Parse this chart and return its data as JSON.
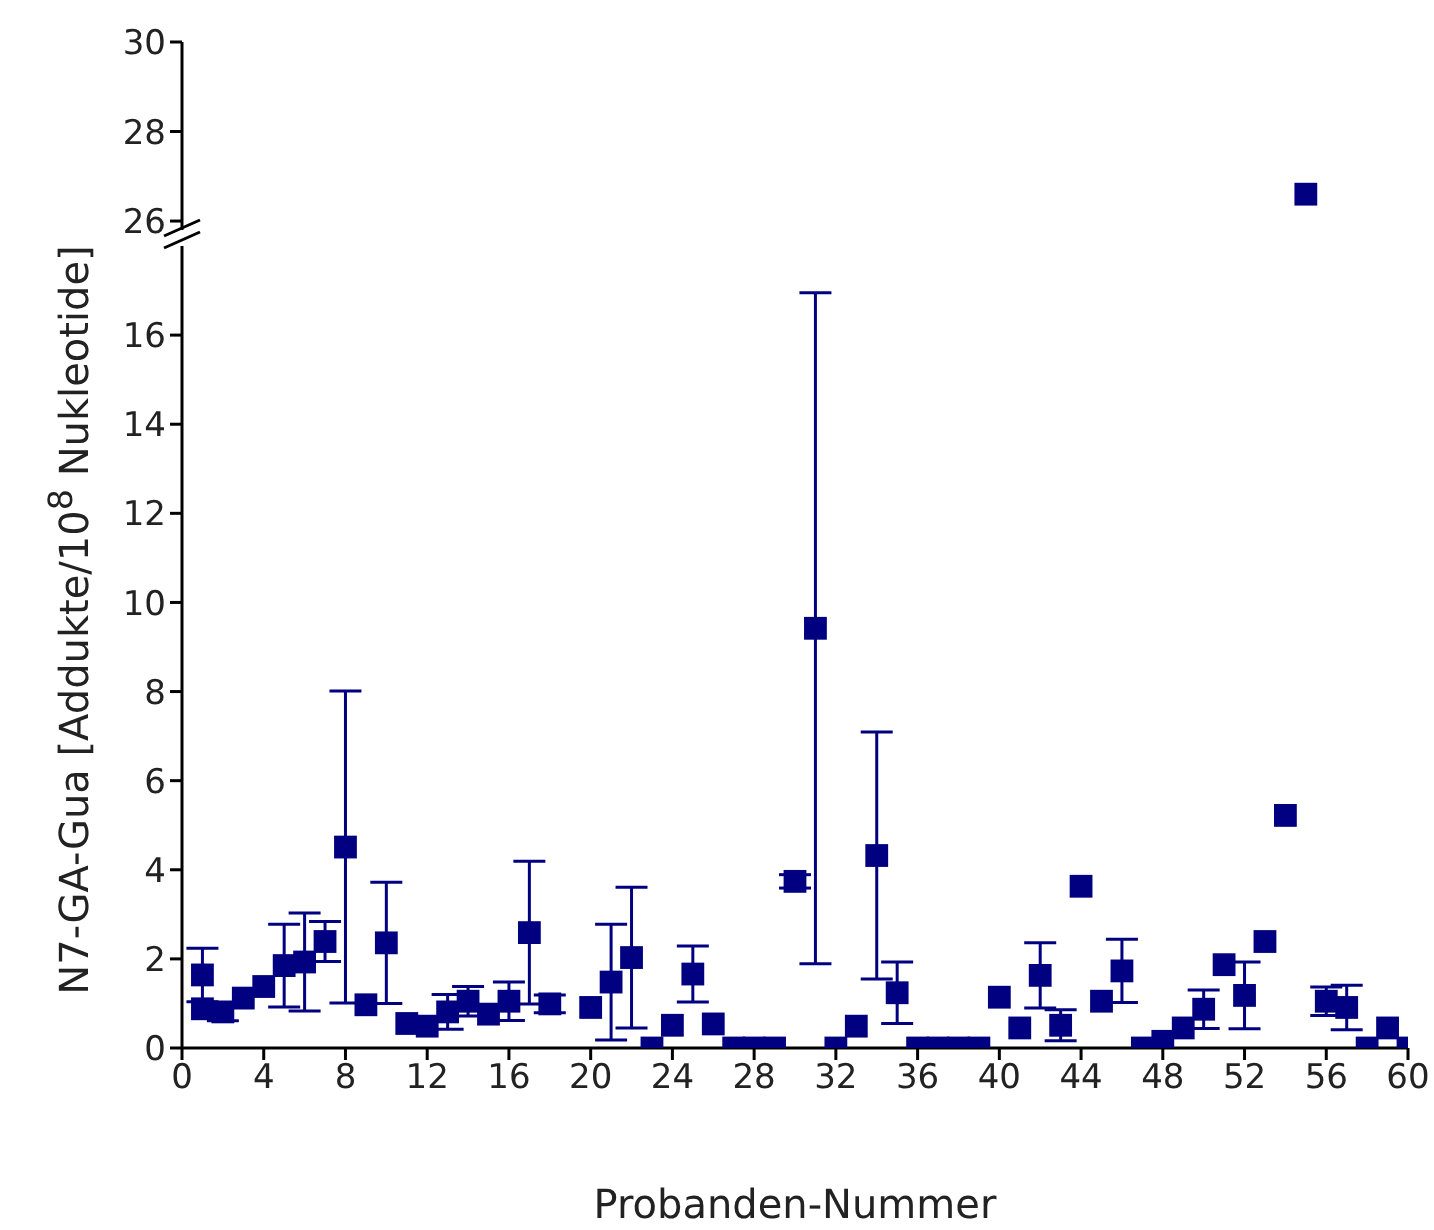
{
  "chart_data": [
    {
      "type": "scatter",
      "marker": "square",
      "tick_labels": "y",
      "xlim": [
        0,
        60
      ],
      "ylim": [
        25.8,
        30
      ],
      "yticks": [
        26,
        28,
        30
      ],
      "series": [
        {
          "color": "#000080",
          "x": [
            55
          ],
          "values": [
            26.6
          ]
        }
      ]
    },
    {
      "type": "scatter",
      "marker": "square",
      "xlabel": "Probanden-Nummer",
      "ylabel": "N7-GA-Gua [Addukte/10$^{8}$ Nukleotide]",
      "xlim": [
        0,
        60
      ],
      "xticks": [
        0,
        4,
        8,
        12,
        16,
        20,
        24,
        28,
        32,
        36,
        40,
        44,
        48,
        52,
        56,
        60
      ],
      "ylim": [
        0,
        18
      ],
      "yticks": [
        0,
        2,
        4,
        6,
        8,
        10,
        12,
        14,
        16
      ],
      "series": [
        {
          "color": "#000080",
          "x": [
            1,
            1,
            2,
            3,
            4,
            5,
            6,
            7,
            8,
            9,
            10,
            11,
            12,
            13,
            14,
            15,
            16,
            17,
            18,
            20,
            21,
            22,
            23,
            24,
            25,
            26,
            27,
            28,
            29,
            30,
            31,
            32,
            33,
            34,
            35,
            36,
            37,
            38,
            39,
            40,
            41,
            42,
            43,
            44,
            45,
            46,
            47,
            48,
            49,
            50,
            51,
            52,
            53,
            54,
            56,
            57,
            58,
            59,
            60
          ],
          "values": [
            1.64,
            0.88,
            0.81,
            1.12,
            1.38,
            1.85,
            1.93,
            2.39,
            4.51,
            0.97,
            2.36,
            0.55,
            0.49,
            0.81,
            1.05,
            0.76,
            1.05,
            2.59,
            0.99,
            0.91,
            1.48,
            2.03,
            0,
            0.51,
            1.66,
            0.54,
            0,
            0,
            0,
            3.74,
            9.42,
            0,
            0.49,
            4.32,
            1.24,
            0,
            0,
            0,
            0,
            1.14,
            0.45,
            1.63,
            0.51,
            3.63,
            1.05,
            1.73,
            0,
            0.15,
            0.45,
            0.87,
            1.87,
            1.18,
            2.39,
            5.22,
            1.05,
            0.91,
            0,
            0.45,
            0
          ],
          "errors": [
            0.6,
            null,
            0.2,
            null,
            null,
            0.93,
            1.1,
            0.45,
            3.5,
            null,
            1.36,
            null,
            null,
            0.39,
            0.33,
            null,
            0.43,
            1.6,
            0.2,
            null,
            1.3,
            1.58,
            null,
            null,
            0.63,
            null,
            null,
            null,
            null,
            0.15,
            7.53,
            null,
            null,
            2.77,
            0.69,
            null,
            null,
            null,
            null,
            null,
            null,
            0.73,
            0.35,
            null,
            null,
            0.71,
            null,
            null,
            null,
            0.43,
            null,
            0.75,
            null,
            null,
            0.32,
            0.5,
            null,
            null,
            null
          ]
        }
      ]
    }
  ]
}
